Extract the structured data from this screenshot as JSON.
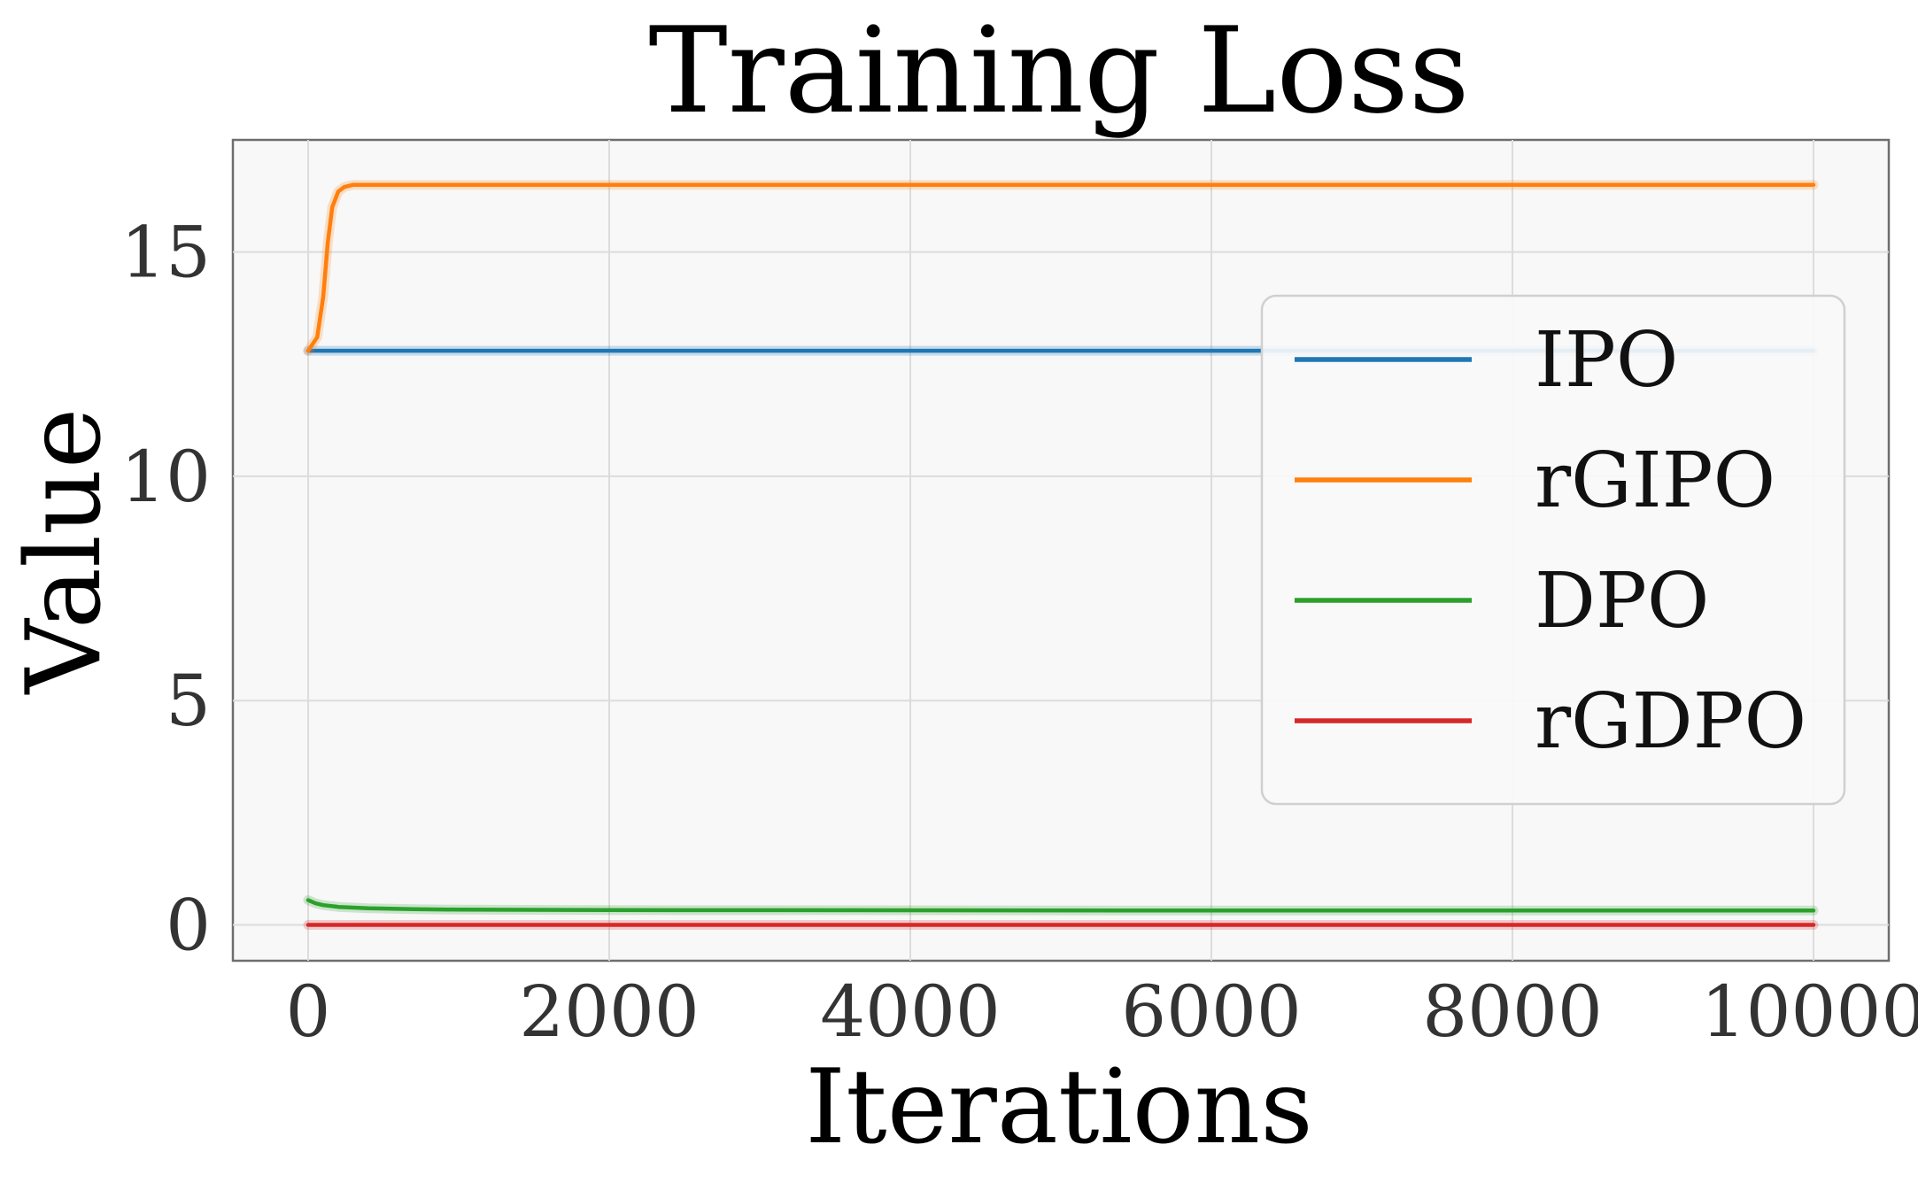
{
  "chart_data": {
    "type": "line",
    "title": "Training Loss",
    "xlabel": "Iterations",
    "ylabel": "Value",
    "xlim": [
      -500,
      10500
    ],
    "ylim": [
      -0.8,
      17.5
    ],
    "xticks": [
      0,
      2000,
      4000,
      6000,
      8000,
      10000
    ],
    "xtick_labels": [
      "0",
      "2000",
      "4000",
      "6000",
      "8000",
      "10000"
    ],
    "yticks": [
      0,
      5,
      10,
      15
    ],
    "ytick_labels": [
      "0",
      "5",
      "10",
      "15"
    ],
    "grid": true,
    "legend_position": "center-right",
    "background_color": "#f8f8f8",
    "series": [
      {
        "name": "IPO",
        "color": "#1f77b4",
        "x": [
          0,
          10000
        ],
        "y": [
          12.8,
          12.8
        ]
      },
      {
        "name": "rGIPO",
        "color": "#ff7f0e",
        "x": [
          0,
          60,
          100,
          130,
          160,
          200,
          240,
          300,
          400,
          500,
          1000,
          10000
        ],
        "y": [
          12.8,
          13.1,
          14.0,
          15.2,
          16.0,
          16.35,
          16.45,
          16.5,
          16.5,
          16.5,
          16.5,
          16.5
        ]
      },
      {
        "name": "DPO",
        "color": "#2ca02c",
        "x": [
          0,
          50,
          100,
          200,
          400,
          700,
          1000,
          2000,
          4000,
          6000,
          8000,
          10000
        ],
        "y": [
          0.55,
          0.48,
          0.44,
          0.4,
          0.37,
          0.35,
          0.34,
          0.33,
          0.325,
          0.32,
          0.32,
          0.32
        ]
      },
      {
        "name": "rGDPO",
        "color": "#d62728",
        "x": [
          0,
          10000
        ],
        "y": [
          0.0,
          0.0
        ]
      }
    ]
  }
}
